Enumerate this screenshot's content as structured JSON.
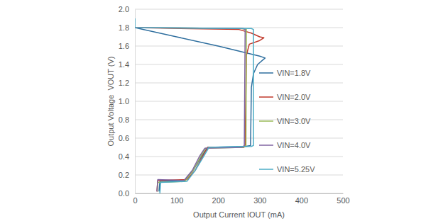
{
  "chart_data": {
    "type": "line",
    "x_label": "Output Current IOUT (mA)",
    "y_label": "Output Voltage  VOUT (V)",
    "xlim": [
      0,
      500
    ],
    "xticks": [
      0,
      100,
      200,
      300,
      400,
      500
    ],
    "ylim": [
      0,
      2
    ],
    "yticks": [
      {
        "value": 0,
        "label": "0.0"
      },
      0.2,
      0.4,
      0.6,
      0.8,
      {
        "value": 1,
        "label": "1.0"
      },
      1.2,
      1.4,
      1.6,
      1.8,
      {
        "value": 2,
        "label": "2.0"
      }
    ],
    "grid": true,
    "legend": "right",
    "series": [
      {
        "name": "VIN=1.8V",
        "color": "#2e6e9e",
        "x": [
          0,
          100,
          200,
          300,
          313,
          295,
          285,
          280,
          278,
          265,
          175,
          160,
          140,
          120,
          60,
          58
        ],
        "values": [
          1.8,
          1.7,
          1.6,
          1.49,
          1.47,
          1.4,
          1.3,
          1.15,
          0.52,
          0.51,
          0.5,
          0.4,
          0.25,
          0.14,
          0.13,
          0.02
        ]
      },
      {
        "name": "VIN=2.0V",
        "color": "#c0392b",
        "x": [
          0,
          250,
          280,
          300,
          310,
          300,
          275,
          268,
          265,
          262,
          175,
          165,
          145,
          125,
          55,
          53
        ],
        "values": [
          1.8,
          1.78,
          1.74,
          1.7,
          1.69,
          1.66,
          1.62,
          1.5,
          0.52,
          0.5,
          0.5,
          0.42,
          0.25,
          0.15,
          0.14,
          0.02
        ]
      },
      {
        "name": "VIN=3.0V",
        "color": "#9bbb59",
        "x": [
          0,
          255,
          268,
          267,
          260,
          170,
          158,
          140,
          120,
          55,
          54
        ],
        "values": [
          1.8,
          1.79,
          1.78,
          0.52,
          0.5,
          0.49,
          0.4,
          0.25,
          0.13,
          0.12,
          0.02
        ]
      },
      {
        "name": "VIN=4.0V",
        "color": "#8064a2",
        "x": [
          0,
          260,
          265,
          263,
          258,
          168,
          155,
          138,
          118,
          55,
          53
        ],
        "values": [
          1.8,
          1.79,
          1.78,
          0.52,
          0.5,
          0.49,
          0.4,
          0.25,
          0.14,
          0.15,
          0.02
        ]
      },
      {
        "name": "VIN=5.25V",
        "color": "#4bacc6",
        "x": [
          0,
          0,
          280,
          285,
          285,
          280,
          178,
          165,
          145,
          125,
          62,
          60
        ],
        "values": [
          1.9,
          1.8,
          1.79,
          1.78,
          0.52,
          0.51,
          0.5,
          0.4,
          0.25,
          0.13,
          0.12,
          0
        ]
      }
    ]
  }
}
